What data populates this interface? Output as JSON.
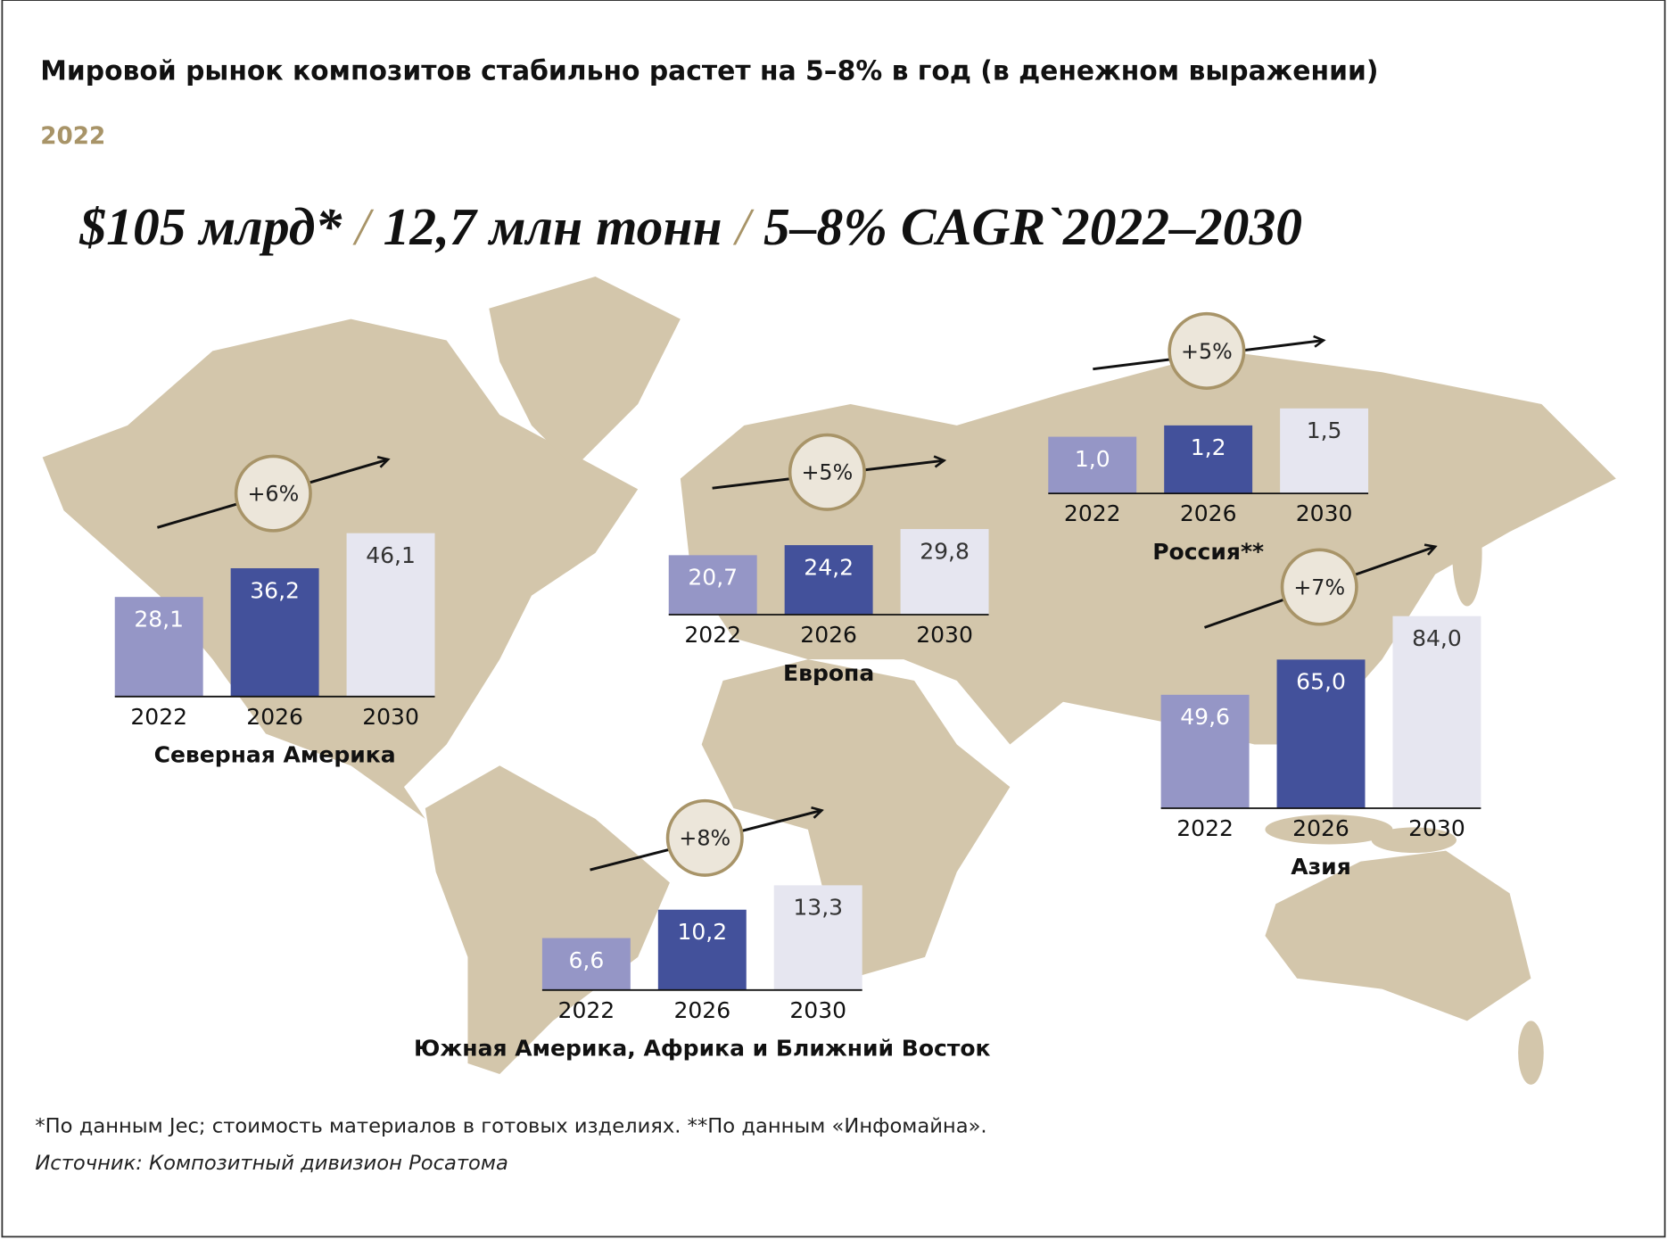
{
  "title": "Мировой рынок композитов стабильно растет на 5–8% в год (в денежном выражении)",
  "subtitle": "2022",
  "headline": [
    "$105 млрд*",
    "12,7 млн тонн",
    "5–8% CAGR`2022–2030"
  ],
  "headline_separator": "/",
  "chart_data": [
    {
      "type": "bar",
      "title": "Северная Америка",
      "growth": "+6%",
      "categories": [
        "2022",
        "2026",
        "2030"
      ],
      "values": [
        28.1,
        36.2,
        46.1
      ],
      "value_labels": [
        "28,1",
        "36,2",
        "46,1"
      ],
      "colors": [
        "#9596c6",
        "#43519b",
        "#e6e6f0"
      ],
      "ylim": [
        0,
        60
      ]
    },
    {
      "type": "bar",
      "title": "Европа",
      "growth": "+5%",
      "categories": [
        "2022",
        "2026",
        "2030"
      ],
      "values": [
        20.7,
        24.2,
        29.8
      ],
      "value_labels": [
        "20,7",
        "24,2",
        "29,8"
      ],
      "colors": [
        "#9596c6",
        "#43519b",
        "#e6e6f0"
      ],
      "ylim": [
        0,
        74
      ]
    },
    {
      "type": "bar",
      "title": "Россия**",
      "growth": "+5%",
      "categories": [
        "2022",
        "2026",
        "2030"
      ],
      "values": [
        1.0,
        1.2,
        1.5
      ],
      "value_labels": [
        "1,0",
        "1,2",
        "1,5"
      ],
      "colors": [
        "#9596c6",
        "#43519b",
        "#e6e6f0"
      ],
      "ylim": [
        0,
        3.75
      ]
    },
    {
      "type": "bar",
      "title": "Азия",
      "growth": "+7%",
      "categories": [
        "2022",
        "2026",
        "2030"
      ],
      "values": [
        49.6,
        65.0,
        84.0
      ],
      "value_labels": [
        "49,6",
        "65,0",
        "84,0"
      ],
      "colors": [
        "#9596c6",
        "#43519b",
        "#e6e6f0"
      ],
      "ylim": [
        0,
        93
      ]
    },
    {
      "type": "bar",
      "title": "Южная Америка, Африка и Ближний Восток",
      "growth": "+8%",
      "categories": [
        "2022",
        "2026",
        "2030"
      ],
      "values": [
        6.6,
        10.2,
        13.3
      ],
      "value_labels": [
        "6,6",
        "10,2",
        "13,3"
      ],
      "colors": [
        "#9596c6",
        "#43519b",
        "#e6e6f0"
      ],
      "ylim": [
        0,
        27
      ]
    }
  ],
  "notes": [
    "*По данным Jec; стоимость материалов в готовых изделиях. **По данным «Инфомайна».",
    "Источник: Композитный дивизион Росатома"
  ]
}
